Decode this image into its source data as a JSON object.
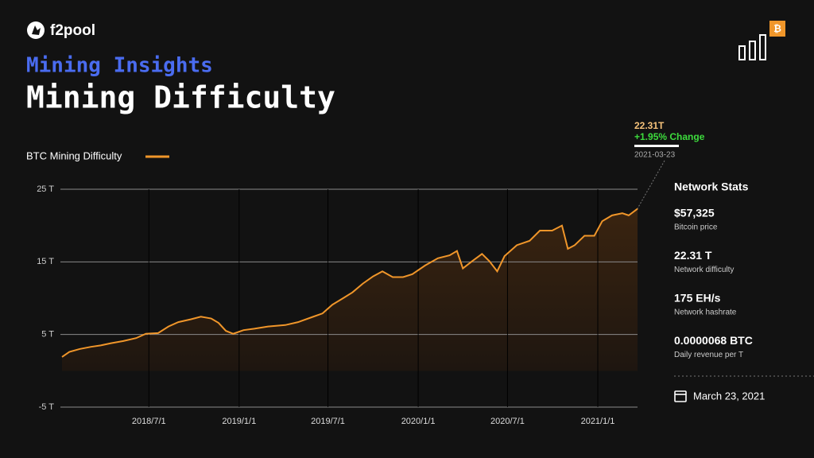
{
  "header": {
    "brand": "f2pool",
    "kicker": "Mining Insights"
  },
  "chart_data": {
    "type": "line",
    "title": "Mining Difficulty",
    "x": [
      "2018/1/5",
      "2018/1/20",
      "2018/2/10",
      "2018/3/5",
      "2018/3/25",
      "2018/4/15",
      "2018/5/10",
      "2018/6/5",
      "2018/6/25",
      "2018/7/20",
      "2018/8/10",
      "2018/8/30",
      "2018/9/25",
      "2018/10/15",
      "2018/11/5",
      "2018/11/20",
      "2018/12/5",
      "2018/12/20",
      "2019/1/10",
      "2019/2/1",
      "2019/3/1",
      "2019/4/5",
      "2019/5/1",
      "2019/5/30",
      "2019/6/20",
      "2019/7/10",
      "2019/8/1",
      "2019/8/20",
      "2019/9/10",
      "2019/10/1",
      "2019/10/20",
      "2019/11/10",
      "2019/12/1",
      "2019/12/20",
      "2020/1/15",
      "2020/2/10",
      "2020/3/5",
      "2020/3/20",
      "2020/4/1",
      "2020/4/20",
      "2020/5/10",
      "2020/5/25",
      "2020/6/10",
      "2020/6/25",
      "2020/7/20",
      "2020/8/15",
      "2020/9/5",
      "2020/9/30",
      "2020/10/20",
      "2020/11/1",
      "2020/11/15",
      "2020/12/5",
      "2020/12/25",
      "2021/1/10",
      "2021/1/30",
      "2021/2/20",
      "2021/3/5",
      "2021/3/23"
    ],
    "series": [
      {
        "name": "BTC Mining Difficulty",
        "color": "#f0962a",
        "values": [
          1.9,
          2.6,
          3.0,
          3.3,
          3.5,
          3.8,
          4.1,
          4.5,
          5.1,
          5.2,
          6.1,
          6.7,
          7.1,
          7.45,
          7.2,
          6.6,
          5.5,
          5.1,
          5.6,
          5.8,
          6.1,
          6.3,
          6.7,
          7.4,
          7.9,
          9.1,
          10.0,
          10.8,
          12.0,
          13.0,
          13.7,
          12.9,
          12.9,
          13.3,
          14.5,
          15.5,
          15.9,
          16.5,
          14.1,
          15.1,
          16.1,
          15.1,
          13.7,
          15.8,
          17.3,
          17.9,
          19.3,
          19.3,
          20.0,
          16.8,
          17.3,
          18.6,
          18.6,
          20.6,
          21.4,
          21.7,
          21.4,
          22.31
        ]
      }
    ],
    "xlim": [
      "2018/1/5",
      "2021/3/23"
    ],
    "xticks": [
      "2018/7/1",
      "2019/1/1",
      "2019/7/1",
      "2020/1/1",
      "2020/7/1",
      "2021/1/1"
    ],
    "ylim": [
      -5,
      25
    ],
    "yticks": [
      {
        "value": -5,
        "label": "-5 T"
      },
      {
        "value": 5,
        "label": "5 T"
      },
      {
        "value": 15,
        "label": "15 T"
      },
      {
        "value": 25,
        "label": "25 T"
      }
    ],
    "grid": true,
    "annotation": {
      "value": "22.31T",
      "change": "+1.95% Change",
      "date": "2021-03-23"
    }
  },
  "stats": {
    "title": "Network Stats",
    "items": [
      {
        "value": "$57,325",
        "label": "Bitcoin price"
      },
      {
        "value": "22.31 T",
        "label": "Network difficulty"
      },
      {
        "value": "175 EH/s",
        "label": "Network hashrate"
      },
      {
        "value": "0.0000068 BTC",
        "label": "Daily revenue per T"
      }
    ],
    "date": "March 23, 2021"
  }
}
